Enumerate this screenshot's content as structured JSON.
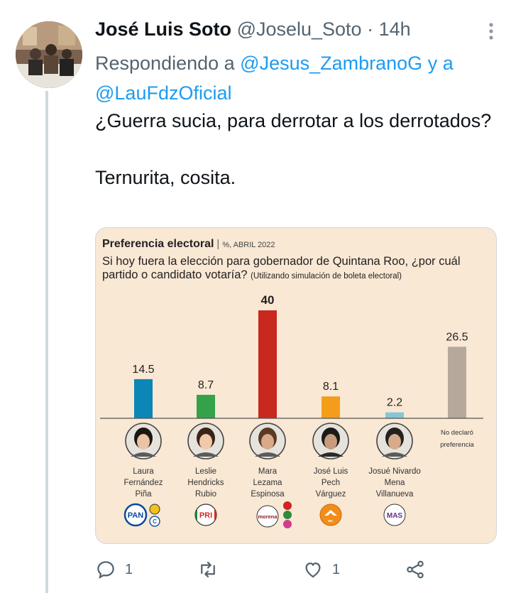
{
  "tweet": {
    "author_name": "José Luis Soto",
    "author_handle": "@Joselu_Soto",
    "time": "· 14h",
    "replying_prefix": "Respondiendo a ",
    "replying_to_1": "@Jesus_ZambranoG",
    "replying_conj": " y a",
    "replying_to_2": "@LauFdzOficial",
    "text_line1": "¿Guerra sucia, para derrotar a los derrotados?",
    "text_line2": "Ternurita, cosita."
  },
  "actions": {
    "reply_count": "1",
    "retweet_count": "",
    "like_count": "1",
    "icons": [
      "reply-icon",
      "retweet-icon",
      "like-icon",
      "share-icon"
    ]
  },
  "chart_data": {
    "type": "bar",
    "title": "Preferencia electoral",
    "subtitle": "%, ABRIL 2022",
    "question": "Si hoy fuera la elección para gobernador de Quintana Roo, ¿por cuál partido o candidato votaría?",
    "question_note": "(Utilizando simulación de boleta electoral)",
    "ylim": [
      0,
      40
    ],
    "categories": [
      "Laura Fernández Piña",
      "Leslie Hendricks Rubio",
      "Mara Lezama Espinosa",
      "José Luis Pech Várguez",
      "Josué Nivardo Mena Villanueva",
      "No declaró preferencia"
    ],
    "category_lines": [
      [
        "Laura",
        "Fernández",
        "Piña"
      ],
      [
        "Leslie",
        "Hendricks",
        "Rubio"
      ],
      [
        "Mara",
        "Lezama",
        "Espinosa"
      ],
      [
        "José Luis",
        "Pech",
        "Várguez"
      ],
      [
        "Josué Nivardo",
        "Mena",
        "Villanueva"
      ],
      [
        "No declaró",
        "preferencia"
      ]
    ],
    "values": [
      14.5,
      8.7,
      40,
      8.1,
      2.2,
      26.5
    ],
    "value_labels": [
      "14.5",
      "8.7",
      "40",
      "8.1",
      "2.2",
      "26.5"
    ],
    "colors": [
      "#0b86b6",
      "#34a249",
      "#c8281e",
      "#f49d1a",
      "#86c6d9",
      "#b6a99b"
    ],
    "party_logos": [
      [
        "PAN",
        "C"
      ],
      [
        "PRI"
      ],
      [
        "morena"
      ],
      [
        "MC"
      ],
      [
        "MAS"
      ],
      []
    ]
  }
}
